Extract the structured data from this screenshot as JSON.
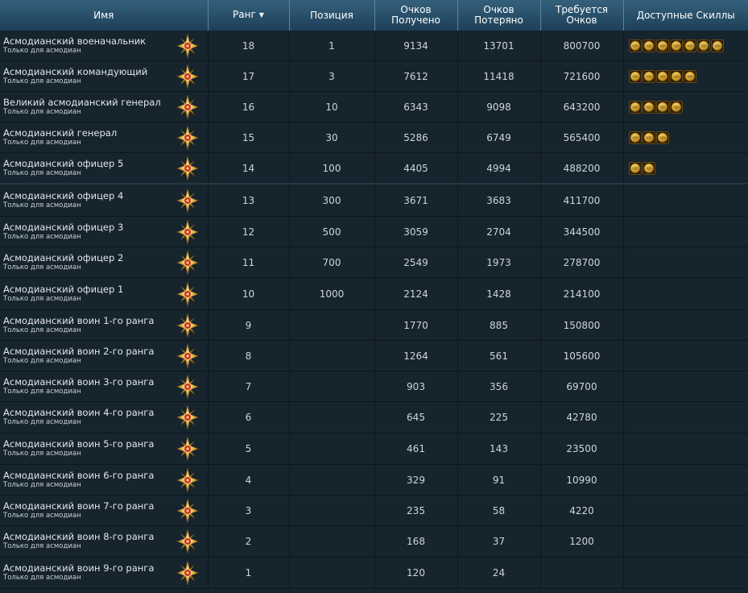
{
  "header": {
    "name": "Имя",
    "rank": "Ранг",
    "position": "Позиция",
    "points_gained": "Очков Получено",
    "points_lost": "Очков Потеряно",
    "points_required": "Требуется Очков",
    "skills": "Доступные Скиллы",
    "sort_icon": "caret-down"
  },
  "colors": {
    "header_bg": "#2a5470",
    "body_bg": "#16242d",
    "emblem": "#d9a641",
    "skill": "#e0b030"
  },
  "rows": [
    {
      "name": "Асмодианский военачальник",
      "restriction": "Только для асмодиан",
      "rank": "18",
      "position": "1",
      "gained": "9134",
      "lost": "13701",
      "required": "800700",
      "skills": 7
    },
    {
      "name": "Асмодианский командующий",
      "restriction": "Только для асмодиан",
      "rank": "17",
      "position": "3",
      "gained": "7612",
      "lost": "11418",
      "required": "721600",
      "skills": 5
    },
    {
      "name": "Великий асмодианский генерал",
      "restriction": "Только для асмодиан",
      "rank": "16",
      "position": "10",
      "gained": "6343",
      "lost": "9098",
      "required": "643200",
      "skills": 4
    },
    {
      "name": "Асмодианский генерал",
      "restriction": "Только для асмодиан",
      "rank": "15",
      "position": "30",
      "gained": "5286",
      "lost": "6749",
      "required": "565400",
      "skills": 3
    },
    {
      "name": "Асмодианский офицер 5",
      "restriction": "Только для асмодиан",
      "rank": "14",
      "position": "100",
      "gained": "4405",
      "lost": "4994",
      "required": "488200",
      "skills": 2
    },
    {
      "name": "Асмодианский офицер 4",
      "restriction": "Только для асмодиан",
      "rank": "13",
      "position": "300",
      "gained": "3671",
      "lost": "3683",
      "required": "411700",
      "skills": 0
    },
    {
      "name": "Асмодианский офицер 3",
      "restriction": "Только для асмодиан",
      "rank": "12",
      "position": "500",
      "gained": "3059",
      "lost": "2704",
      "required": "344500",
      "skills": 0
    },
    {
      "name": "Асмодианский офицер 2",
      "restriction": "Только для асмодиан",
      "rank": "11",
      "position": "700",
      "gained": "2549",
      "lost": "1973",
      "required": "278700",
      "skills": 0
    },
    {
      "name": "Асмодианский офицер 1",
      "restriction": "Только для асмодиан",
      "rank": "10",
      "position": "1000",
      "gained": "2124",
      "lost": "1428",
      "required": "214100",
      "skills": 0
    },
    {
      "name": "Асмодианский воин 1-го ранга",
      "restriction": "Только для асмодиан",
      "rank": "9",
      "position": "",
      "gained": "1770",
      "lost": "885",
      "required": "150800",
      "skills": 0
    },
    {
      "name": "Асмодианский воин 2-го ранга",
      "restriction": "Только для асмодиан",
      "rank": "8",
      "position": "",
      "gained": "1264",
      "lost": "561",
      "required": "105600",
      "skills": 0
    },
    {
      "name": "Асмодианский воин 3-го ранга",
      "restriction": "Только для асмодиан",
      "rank": "7",
      "position": "",
      "gained": "903",
      "lost": "356",
      "required": "69700",
      "skills": 0
    },
    {
      "name": "Асмодианский воин 4-го ранга",
      "restriction": "Только для асмодиан",
      "rank": "6",
      "position": "",
      "gained": "645",
      "lost": "225",
      "required": "42780",
      "skills": 0
    },
    {
      "name": "Асмодианский воин 5-го ранга",
      "restriction": "Только для асмодиан",
      "rank": "5",
      "position": "",
      "gained": "461",
      "lost": "143",
      "required": "23500",
      "skills": 0
    },
    {
      "name": "Асмодианский воин 6-го ранга",
      "restriction": "Только для асмодиан",
      "rank": "4",
      "position": "",
      "gained": "329",
      "lost": "91",
      "required": "10990",
      "skills": 0
    },
    {
      "name": "Асмодианский воин 7-го ранга",
      "restriction": "Только для асмодиан",
      "rank": "3",
      "position": "",
      "gained": "235",
      "lost": "58",
      "required": "4220",
      "skills": 0
    },
    {
      "name": "Асмодианский воин 8-го ранга",
      "restriction": "Только для асмодиан",
      "rank": "2",
      "position": "",
      "gained": "168",
      "lost": "37",
      "required": "1200",
      "skills": 0
    },
    {
      "name": "Асмодианский воин 9-го ранга",
      "restriction": "Только для асмодиан",
      "rank": "1",
      "position": "",
      "gained": "120",
      "lost": "24",
      "required": "",
      "skills": 0
    }
  ]
}
